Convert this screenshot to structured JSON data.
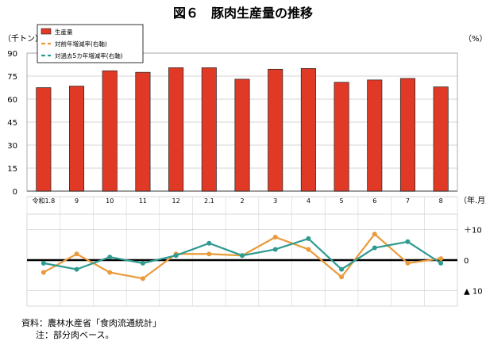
{
  "chart_data": {
    "title": "図６　豚肉生産量の推移",
    "type": "bar+line",
    "categories": [
      "令和1.8",
      "9",
      "10",
      "11",
      "12",
      "2.1",
      "2",
      "3",
      "4",
      "5",
      "6",
      "7",
      "8"
    ],
    "x_axis_unit": "（年.月）",
    "bars": {
      "name": "生産量",
      "color": "#e03a26",
      "unit": "（千トン）",
      "values": [
        67.5,
        68.5,
        78.5,
        77.5,
        80.5,
        80.5,
        73,
        79.5,
        80,
        71,
        72.5,
        73.5,
        68
      ],
      "ylim": [
        0,
        90
      ],
      "ticks": [
        "90",
        "75",
        "60",
        "45",
        "30",
        "15",
        "0"
      ]
    },
    "lines": {
      "unit": "（%）",
      "ylim": [
        -15,
        15
      ],
      "ticks": [
        {
          "value": 10,
          "label": "＋10"
        },
        {
          "value": 0,
          "label": "0"
        },
        {
          "value": -10,
          "label": "▲ 10"
        }
      ],
      "series": [
        {
          "name": "対前年増減率(右軸)",
          "color": "#ea9a3a",
          "values": [
            -4,
            2,
            -4,
            -6,
            2,
            2,
            1.5,
            7.5,
            3.5,
            -5.5,
            8.5,
            -1,
            0.5
          ]
        },
        {
          "name": "対過去5カ年増減率(右軸)",
          "color": "#2e9a90",
          "values": [
            -1,
            -3,
            1,
            -1,
            1.5,
            5.5,
            1.5,
            3.5,
            7,
            -3,
            4,
            6,
            -1
          ]
        }
      ]
    }
  },
  "notes": {
    "source": "資料：農林水産省「食肉流通統計」",
    "note": "注：部分肉ベース。"
  }
}
